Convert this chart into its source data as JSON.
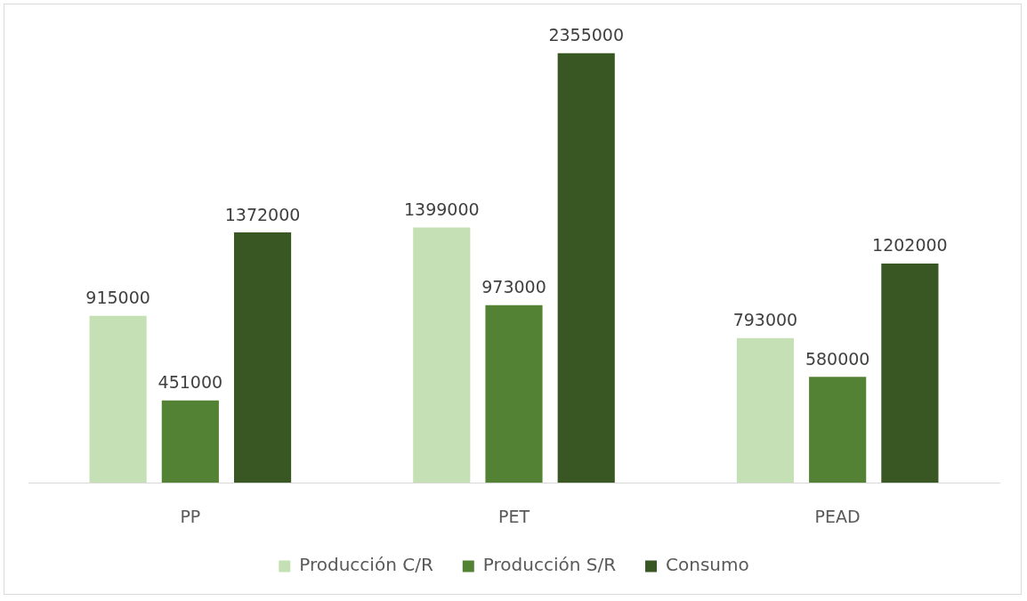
{
  "chart_data": {
    "type": "bar",
    "categories": [
      "PP",
      "PET",
      "PEAD"
    ],
    "series": [
      {
        "name": "Producción C/R",
        "color": "#c5e0b4",
        "values": [
          915000,
          1399000,
          793000
        ]
      },
      {
        "name": "Producción S/R",
        "color": "#548235",
        "values": [
          451000,
          973000,
          580000
        ]
      },
      {
        "name": "Consumo",
        "color": "#385723",
        "values": [
          1372000,
          2355000,
          1202000
        ]
      }
    ],
    "data_labels": true,
    "legend": "bottom",
    "tick_labels": "x"
  }
}
